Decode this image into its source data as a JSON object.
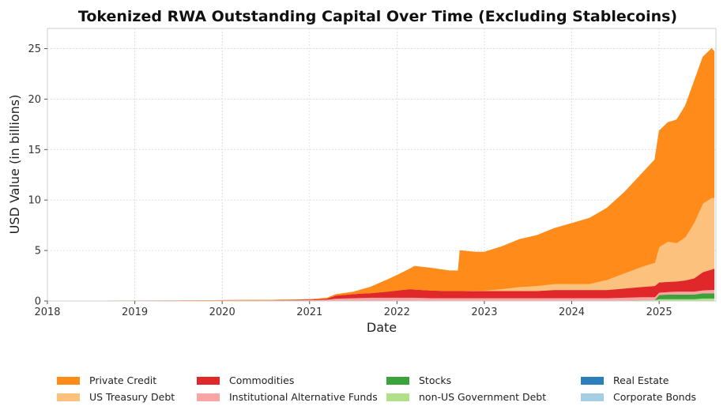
{
  "chart_data": {
    "type": "area",
    "stacked": true,
    "title": "Tokenized RWA Outstanding Capital Over Time (Excluding Stablecoins)",
    "xlabel": "Date",
    "ylabel": "USD Value (in billions)",
    "xlim": [
      2018.0,
      2025.65
    ],
    "ylim": [
      0,
      27
    ],
    "x_ticks": [
      2018,
      2019,
      2020,
      2021,
      2022,
      2023,
      2024,
      2025
    ],
    "y_ticks": [
      0,
      5,
      10,
      15,
      20,
      25
    ],
    "grid": true,
    "legend_position": "bottom",
    "x": [
      2018.0,
      2019.5,
      2019.9,
      2020.5,
      2021.0,
      2021.2,
      2021.3,
      2021.5,
      2021.7,
      2021.9,
      2022.0,
      2022.15,
      2022.2,
      2022.4,
      2022.6,
      2022.7,
      2022.72,
      2022.9,
      2023.0,
      2023.2,
      2023.4,
      2023.6,
      2023.8,
      2024.0,
      2024.2,
      2024.4,
      2024.6,
      2024.8,
      2024.95,
      2025.0,
      2025.1,
      2025.2,
      2025.3,
      2025.4,
      2025.5,
      2025.6,
      2025.63
    ],
    "series": [
      {
        "name": "Private Credit",
        "color": "#ff8c1a",
        "values": [
          0,
          0,
          0,
          0,
          0,
          0.05,
          0.1,
          0.2,
          0.6,
          1.2,
          1.5,
          2.0,
          2.3,
          2.2,
          2.0,
          2.0,
          4.0,
          3.8,
          3.8,
          4.2,
          4.7,
          5.0,
          5.5,
          6.0,
          6.5,
          7.1,
          8.0,
          9.2,
          10.2,
          11.5,
          11.8,
          12.2,
          13.0,
          14.0,
          14.5,
          14.8,
          14.5
        ]
      },
      {
        "name": "US Treasury Debt",
        "color": "#fdc17e",
        "values": [
          0,
          0,
          0,
          0,
          0,
          0,
          0,
          0,
          0,
          0,
          0,
          0,
          0,
          0,
          0,
          0,
          0,
          0.05,
          0.05,
          0.2,
          0.4,
          0.5,
          0.6,
          0.6,
          0.6,
          1.0,
          1.5,
          2.0,
          2.3,
          3.5,
          4.0,
          3.8,
          4.3,
          5.5,
          6.8,
          7.1,
          7.0
        ]
      },
      {
        "name": "Commodities",
        "color": "#e0282a",
        "values": [
          0,
          0,
          0,
          0,
          0.05,
          0.1,
          0.3,
          0.4,
          0.45,
          0.6,
          0.7,
          0.85,
          0.8,
          0.75,
          0.7,
          0.7,
          0.7,
          0.7,
          0.7,
          0.7,
          0.7,
          0.7,
          0.8,
          0.8,
          0.8,
          0.8,
          0.9,
          1.0,
          1.1,
          1.0,
          1.0,
          1.0,
          1.1,
          1.3,
          1.8,
          2.0,
          2.1
        ]
      },
      {
        "name": "Institutional Alternative Funds",
        "color": "#f9a5a5",
        "values": [
          0,
          0.03,
          0.05,
          0.08,
          0.1,
          0.15,
          0.25,
          0.3,
          0.35,
          0.35,
          0.35,
          0.35,
          0.35,
          0.3,
          0.3,
          0.3,
          0.3,
          0.3,
          0.3,
          0.3,
          0.3,
          0.3,
          0.3,
          0.3,
          0.3,
          0.3,
          0.3,
          0.3,
          0.3,
          0.25,
          0.25,
          0.3,
          0.3,
          0.3,
          0.3,
          0.35,
          0.35
        ]
      },
      {
        "name": "Stocks",
        "color": "#3ca33c",
        "values": [
          0,
          0,
          0,
          0,
          0,
          0,
          0,
          0,
          0,
          0,
          0,
          0,
          0,
          0,
          0,
          0,
          0,
          0,
          0,
          0,
          0,
          0,
          0,
          0,
          0,
          0,
          0,
          0,
          0,
          0.4,
          0.45,
          0.45,
          0.45,
          0.45,
          0.5,
          0.5,
          0.5
        ]
      },
      {
        "name": "non-US Government Debt",
        "color": "#b2df8a",
        "values": [
          0,
          0,
          0,
          0,
          0,
          0,
          0,
          0,
          0,
          0,
          0,
          0,
          0,
          0,
          0,
          0,
          0,
          0,
          0,
          0,
          0,
          0,
          0,
          0,
          0,
          0,
          0.05,
          0.1,
          0.1,
          0.2,
          0.2,
          0.2,
          0.2,
          0.2,
          0.25,
          0.25,
          0.25
        ]
      },
      {
        "name": "Real Estate",
        "color": "#2b80b9",
        "values": [
          0,
          0,
          0,
          0,
          0,
          0,
          0,
          0,
          0,
          0,
          0,
          0,
          0,
          0,
          0,
          0,
          0,
          0,
          0,
          0,
          0,
          0,
          0,
          0,
          0,
          0,
          0,
          0,
          0,
          0,
          0,
          0,
          0,
          0,
          0,
          0,
          0
        ]
      },
      {
        "name": "Corporate Bonds",
        "color": "#a6cee3",
        "values": [
          0,
          0,
          0,
          0,
          0,
          0,
          0,
          0,
          0,
          0,
          0,
          0,
          0,
          0,
          0,
          0,
          0,
          0,
          0,
          0,
          0,
          0,
          0,
          0,
          0,
          0,
          0,
          0,
          0,
          0,
          0,
          0,
          0,
          0,
          0.02,
          0.02,
          0.02
        ]
      }
    ]
  }
}
